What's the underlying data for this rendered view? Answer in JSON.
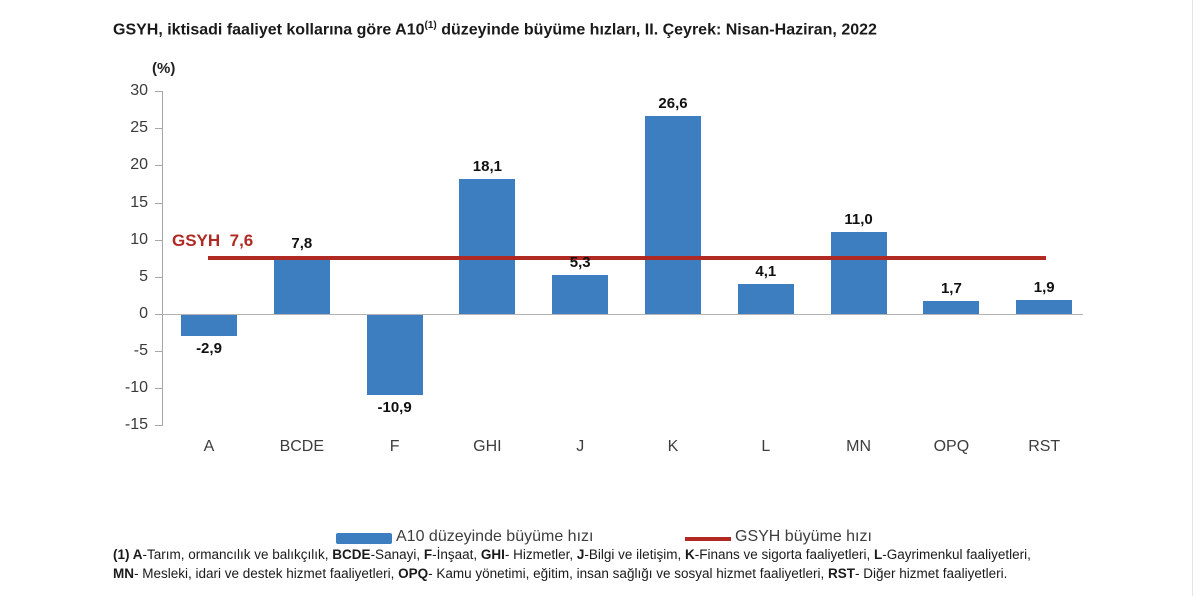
{
  "chart_data": {
    "type": "bar",
    "title": {
      "prefix": "GSYH, iktisadi faaliyet kollarına göre A10",
      "superscript": "(1)",
      "suffix": " düzeyinde büyüme hızları, II. Çeyrek: Nisan-Haziran, 2022"
    },
    "unit_label": "(%)",
    "categories": [
      "A",
      "BCDE",
      "F",
      "GHI",
      "J",
      "K",
      "L",
      "MN",
      "OPQ",
      "RST"
    ],
    "values": [
      -2.9,
      7.8,
      -10.9,
      18.1,
      5.3,
      26.6,
      4.1,
      11.0,
      1.7,
      1.9
    ],
    "value_labels": [
      "-2,9",
      "7,8",
      "-10,9",
      "18,1",
      "5,3",
      "26,6",
      "4,1",
      "11,0",
      "1,7",
      "1,9"
    ],
    "y_ticks": [
      30,
      25,
      20,
      15,
      10,
      5,
      0,
      -5,
      -10,
      -15
    ],
    "ylim": [
      -15,
      30
    ],
    "grid": "zero-line-only",
    "reference_line": {
      "value": 7.6,
      "label": "GSYH  7,6"
    },
    "colors": {
      "bar": "#3d7ec1",
      "reference": "#b02a23",
      "axis": "#a6a6a6",
      "zero_line": "#b3b3b3"
    },
    "legend": {
      "position": "bottom",
      "items": [
        {
          "type": "bar",
          "label": "A10 düzeyinde büyüme hızı"
        },
        {
          "type": "line",
          "label": "GSYH büyüme hızı"
        }
      ]
    }
  },
  "footnote": {
    "lines": [
      [
        {
          "t": "(1) A",
          "b": true
        },
        {
          "t": "-Tarım, ormancılık ve balıkçılık, ",
          "b": false
        },
        {
          "t": "BCDE",
          "b": true
        },
        {
          "t": "-Sanayi, ",
          "b": false
        },
        {
          "t": "F",
          "b": true
        },
        {
          "t": "-İnşaat, ",
          "b": false
        },
        {
          "t": "GHI",
          "b": true
        },
        {
          "t": "- Hizmetler, ",
          "b": false
        },
        {
          "t": "J",
          "b": true
        },
        {
          "t": "-Bilgi ve iletişim, ",
          "b": false
        },
        {
          "t": "K",
          "b": true
        },
        {
          "t": "-Finans ve sigorta faaliyetleri, ",
          "b": false
        },
        {
          "t": "L",
          "b": true
        },
        {
          "t": "-Gayrimenkul faaliyetleri,",
          "b": false
        }
      ],
      [
        {
          "t": "MN",
          "b": true
        },
        {
          "t": "- Mesleki, idari ve destek hizmet faaliyetleri, ",
          "b": false
        },
        {
          "t": "OPQ",
          "b": true
        },
        {
          "t": "- Kamu yönetimi, eğitim, insan sağlığı ve sosyal hizmet faaliyetleri, ",
          "b": false
        },
        {
          "t": "RST",
          "b": true
        },
        {
          "t": "- Diğer hizmet faaliyetleri.",
          "b": false
        }
      ]
    ]
  }
}
